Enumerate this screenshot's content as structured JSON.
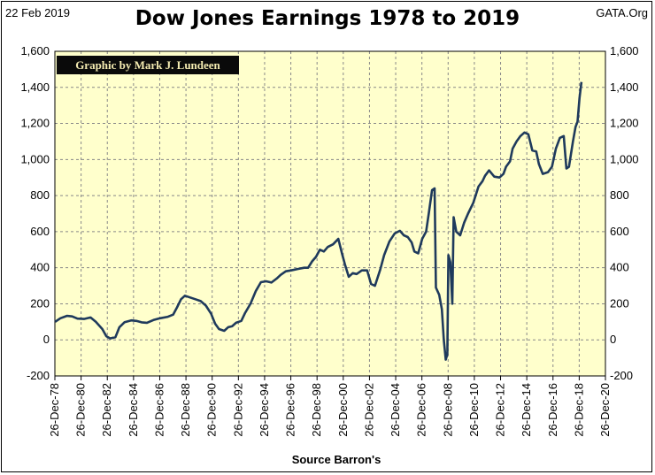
{
  "header": {
    "date": "22 Feb 2019",
    "source": "GATA.Org",
    "title": "Dow Jones Earnings 1978 to 2019"
  },
  "credit": "Graphic by Mark J. Lundeen",
  "colors": {
    "plot_bg": "#ffffcc",
    "line": "#1f3a5c",
    "grid": "#888888"
  },
  "chart_data": {
    "type": "line",
    "title": "Dow Jones Earnings 1978 to 2019",
    "xlabel": "Source Barron's",
    "ylabel": "",
    "ylim": [
      -200,
      1600
    ],
    "xlim": [
      1978.98,
      2020.98
    ],
    "y_ticks": [
      -200,
      0,
      200,
      400,
      600,
      800,
      1000,
      1200,
      1400,
      1600
    ],
    "y_tick_labels": [
      "-200",
      "0",
      "200",
      "400",
      "600",
      "800",
      "1,000",
      "1,200",
      "1,400",
      "1,600"
    ],
    "x_ticks": [
      1978.98,
      1980.98,
      1982.98,
      1984.98,
      1986.98,
      1988.98,
      1990.98,
      1992.98,
      1994.98,
      1996.98,
      1998.98,
      2000.98,
      2002.98,
      2004.98,
      2006.98,
      2008.98,
      2010.98,
      2012.98,
      2014.98,
      2016.98,
      2018.98,
      2020.98
    ],
    "x_tick_labels": [
      "26-Dec-78",
      "26-Dec-80",
      "26-Dec-82",
      "26-Dec-84",
      "26-Dec-86",
      "26-Dec-88",
      "26-Dec-90",
      "26-Dec-92",
      "26-Dec-94",
      "26-Dec-96",
      "26-Dec-98",
      "26-Dec-00",
      "26-Dec-02",
      "26-Dec-04",
      "26-Dec-06",
      "26-Dec-08",
      "26-Dec-10",
      "26-Dec-12",
      "26-Dec-14",
      "26-Dec-16",
      "26-Dec-18",
      "26-Dec-20"
    ],
    "grid": true,
    "series": [
      {
        "values": [
          [
            1979.0,
            100
          ],
          [
            1979.4,
            120
          ],
          [
            1979.9,
            133
          ],
          [
            1980.3,
            130
          ],
          [
            1980.7,
            118
          ],
          [
            1981.2,
            116
          ],
          [
            1981.7,
            124
          ],
          [
            1982.1,
            100
          ],
          [
            1982.6,
            60
          ],
          [
            1982.9,
            20
          ],
          [
            1983.2,
            8
          ],
          [
            1983.6,
            15
          ],
          [
            1983.9,
            70
          ],
          [
            1984.3,
            98
          ],
          [
            1984.8,
            108
          ],
          [
            1985.2,
            105
          ],
          [
            1985.6,
            97
          ],
          [
            1986.0,
            95
          ],
          [
            1986.5,
            110
          ],
          [
            1987.0,
            120
          ],
          [
            1987.6,
            128
          ],
          [
            1988.0,
            140
          ],
          [
            1988.3,
            180
          ],
          [
            1988.6,
            225
          ],
          [
            1988.9,
            245
          ],
          [
            1989.3,
            235
          ],
          [
            1989.7,
            225
          ],
          [
            1990.1,
            215
          ],
          [
            1990.5,
            190
          ],
          [
            1990.9,
            145
          ],
          [
            1991.2,
            90
          ],
          [
            1991.5,
            60
          ],
          [
            1991.9,
            50
          ],
          [
            1992.2,
            70
          ],
          [
            1992.5,
            75
          ],
          [
            1992.8,
            95
          ],
          [
            1993.2,
            105
          ],
          [
            1993.5,
            150
          ],
          [
            1993.9,
            200
          ],
          [
            1994.3,
            270
          ],
          [
            1994.7,
            320
          ],
          [
            1995.1,
            325
          ],
          [
            1995.5,
            318
          ],
          [
            1995.9,
            340
          ],
          [
            1996.2,
            360
          ],
          [
            1996.6,
            380
          ],
          [
            1997.0,
            385
          ],
          [
            1997.5,
            393
          ],
          [
            1998.0,
            400
          ],
          [
            1998.3,
            400
          ],
          [
            1998.6,
            435
          ],
          [
            1998.9,
            460
          ],
          [
            1999.2,
            500
          ],
          [
            1999.5,
            490
          ],
          [
            1999.8,
            515
          ],
          [
            2000.2,
            530
          ],
          [
            2000.6,
            560
          ],
          [
            2000.9,
            475
          ],
          [
            2001.1,
            420
          ],
          [
            2001.4,
            350
          ],
          [
            2001.7,
            370
          ],
          [
            2002.0,
            365
          ],
          [
            2002.4,
            385
          ],
          [
            2002.8,
            385
          ],
          [
            2003.1,
            310
          ],
          [
            2003.4,
            300
          ],
          [
            2003.8,
            390
          ],
          [
            2004.1,
            470
          ],
          [
            2004.5,
            545
          ],
          [
            2004.9,
            590
          ],
          [
            2005.3,
            605
          ],
          [
            2005.6,
            580
          ],
          [
            2005.9,
            570
          ],
          [
            2006.2,
            540
          ],
          [
            2006.4,
            490
          ],
          [
            2006.7,
            480
          ],
          [
            2007.0,
            560
          ],
          [
            2007.3,
            600
          ],
          [
            2007.5,
            700
          ],
          [
            2007.75,
            830
          ],
          [
            2007.95,
            840
          ],
          [
            2008.05,
            290
          ],
          [
            2008.3,
            250
          ],
          [
            2008.5,
            170
          ],
          [
            2008.65,
            0
          ],
          [
            2008.8,
            -110
          ],
          [
            2008.92,
            -80
          ],
          [
            2009.0,
            470
          ],
          [
            2009.15,
            430
          ],
          [
            2009.3,
            200
          ],
          [
            2009.4,
            680
          ],
          [
            2009.6,
            600
          ],
          [
            2009.9,
            580
          ],
          [
            2010.2,
            650
          ],
          [
            2010.5,
            700
          ],
          [
            2010.9,
            760
          ],
          [
            2011.3,
            850
          ],
          [
            2011.6,
            880
          ],
          [
            2011.8,
            910
          ],
          [
            2012.1,
            940
          ],
          [
            2012.5,
            905
          ],
          [
            2012.9,
            900
          ],
          [
            2013.2,
            920
          ],
          [
            2013.4,
            960
          ],
          [
            2013.7,
            990
          ],
          [
            2013.9,
            1060
          ],
          [
            2014.2,
            1100
          ],
          [
            2014.5,
            1130
          ],
          [
            2014.8,
            1150
          ],
          [
            2015.1,
            1140
          ],
          [
            2015.4,
            1050
          ],
          [
            2015.7,
            1045
          ],
          [
            2015.9,
            975
          ],
          [
            2016.2,
            920
          ],
          [
            2016.6,
            930
          ],
          [
            2016.9,
            960
          ],
          [
            2017.2,
            1060
          ],
          [
            2017.5,
            1120
          ],
          [
            2017.8,
            1130
          ],
          [
            2018.0,
            950
          ],
          [
            2018.2,
            960
          ],
          [
            2018.5,
            1100
          ],
          [
            2018.7,
            1180
          ],
          [
            2018.85,
            1210
          ],
          [
            2019.0,
            1340
          ],
          [
            2019.15,
            1430
          ]
        ]
      }
    ]
  }
}
